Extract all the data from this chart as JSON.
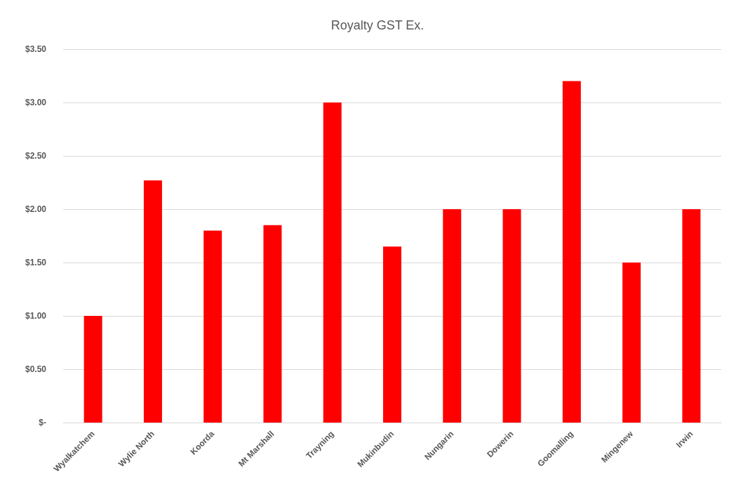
{
  "chart_data": {
    "type": "bar",
    "title": "Royalty GST Ex.",
    "categories": [
      "Wyalkatchem",
      "Wylie North",
      "Koorda",
      "Mt Marshall",
      "Trayning",
      "Mukinbudin",
      "Nungarin",
      "Dowerin",
      "Goomalling",
      "Mingenew",
      "Irwin"
    ],
    "values": [
      1.0,
      2.27,
      1.8,
      1.85,
      3.0,
      1.65,
      2.0,
      2.0,
      3.2,
      1.5,
      2.0
    ],
    "color": "#ff0000",
    "ylim": [
      0,
      3.5
    ],
    "yticks": [
      {
        "value": 0,
        "label": "$-"
      },
      {
        "value": 0.5,
        "label": "$0.50"
      },
      {
        "value": 1,
        "label": "$1.00"
      },
      {
        "value": 1.5,
        "label": "$1.50"
      },
      {
        "value": 2,
        "label": "$2.00"
      },
      {
        "value": 2.5,
        "label": "$2.50"
      },
      {
        "value": 3,
        "label": "$3.00"
      },
      {
        "value": 3.5,
        "label": "$3.50"
      }
    ],
    "grid": "y"
  }
}
